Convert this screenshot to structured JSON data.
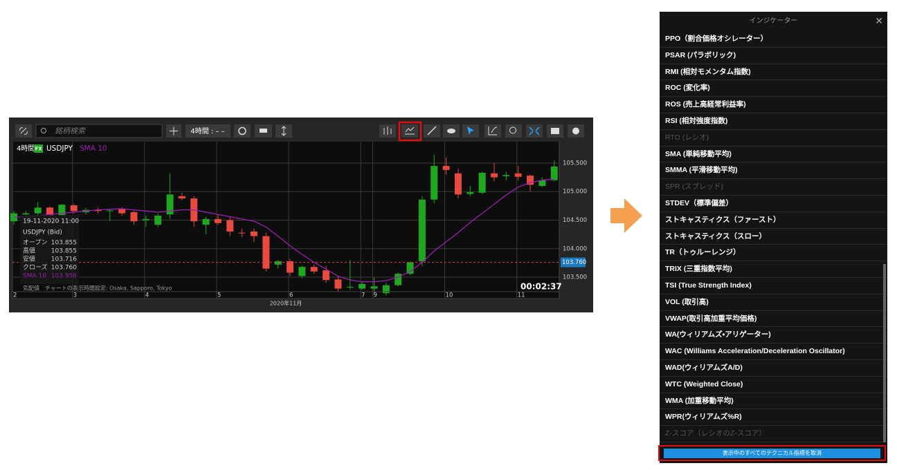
{
  "chart_panel": {
    "toolbar": {
      "search_placeholder": "銘柄検索",
      "timeframe": "4時間 : – –"
    },
    "header": {
      "timeframe": "4時間",
      "market": "FX",
      "symbol": "USDJPY"
    },
    "info": {
      "datetime": "19-11-2020 11:00",
      "symbol": "USDJPY (Bid)",
      "rows": [
        {
          "label": "オープン",
          "value": "103.855"
        },
        {
          "label": "高値",
          "value": "103.855"
        },
        {
          "label": "安値",
          "value": "103.716"
        },
        {
          "label": "クローズ",
          "value": "103.760"
        },
        {
          "label": "SMA 10",
          "value": "103.956"
        }
      ]
    },
    "footer": "気配値　チャートの表示時間設定: Osaka, Sapporo, Tokyo",
    "timer": "00:02:37",
    "month_label": "2020年11月"
  },
  "chart_data": {
    "type": "candlestick",
    "categories": [
      "2",
      null,
      null,
      null,
      null,
      "3",
      null,
      null,
      null,
      null,
      null,
      "4",
      null,
      null,
      null,
      null,
      null,
      "5",
      null,
      null,
      null,
      null,
      null,
      "6",
      null,
      null,
      null,
      null,
      null,
      "7",
      "9",
      null,
      null,
      null,
      null,
      null,
      "10",
      null,
      null,
      null,
      null,
      null,
      "11",
      null,
      null,
      null
    ],
    "open": [
      104.48,
      104.6,
      104.62,
      104.72,
      104.58,
      104.76,
      104.64,
      104.68,
      104.66,
      104.7,
      104.64,
      104.5,
      104.42,
      104.6,
      104.92,
      104.88,
      104.42,
      104.52,
      104.5,
      104.28,
      104.3,
      104.22,
      103.72,
      103.78,
      103.52,
      103.68,
      103.62,
      103.46,
      103.32,
      103.3,
      103.3,
      103.22,
      103.36,
      103.56,
      103.78,
      104.86,
      105.45,
      105.32,
      104.96,
      104.98,
      105.32,
      105.27,
      105.32,
      105.28,
      105.1,
      105.2
    ],
    "high": [
      104.66,
      104.66,
      104.82,
      104.74,
      104.78,
      104.78,
      104.72,
      104.72,
      104.7,
      104.72,
      104.66,
      104.58,
      104.62,
      105.32,
      104.98,
      104.92,
      104.56,
      104.6,
      104.55,
      104.35,
      104.35,
      104.28,
      103.8,
      103.82,
      103.7,
      103.72,
      103.7,
      103.52,
      103.8,
      103.42,
      103.5,
      103.4,
      103.58,
      103.78,
      104.92,
      105.65,
      105.6,
      105.4,
      105.1,
      105.35,
      105.5,
      105.35,
      105.45,
      105.3,
      105.25,
      105.55
    ],
    "low": [
      104.42,
      104.55,
      104.58,
      104.55,
      104.56,
      104.62,
      104.6,
      104.62,
      104.48,
      104.58,
      104.42,
      104.38,
      104.38,
      104.52,
      104.85,
      104.38,
      104.25,
      104.42,
      104.22,
      104.2,
      104.12,
      103.6,
      103.65,
      103.52,
      103.48,
      103.56,
      103.4,
      103.25,
      103.28,
      103.28,
      103.22,
      103.18,
      103.34,
      103.54,
      103.7,
      104.8,
      105.3,
      104.88,
      104.92,
      104.96,
      105.18,
      105.2,
      105.2,
      105.0,
      105.08,
      105.18
    ],
    "close": [
      104.62,
      104.62,
      104.72,
      104.58,
      104.77,
      104.66,
      104.68,
      104.66,
      104.67,
      104.62,
      104.48,
      104.52,
      104.58,
      104.95,
      104.88,
      104.48,
      104.52,
      104.45,
      104.3,
      104.27,
      104.22,
      103.65,
      103.78,
      103.58,
      103.68,
      103.6,
      103.45,
      103.3,
      103.33,
      103.38,
      103.34,
      103.36,
      103.56,
      103.76,
      104.86,
      105.45,
      105.38,
      104.95,
      104.99,
      105.33,
      105.25,
      105.29,
      105.26,
      105.12,
      105.2,
      105.44
    ],
    "up_color": "#1fa81f",
    "down_color": "#e84a3f",
    "sma": {
      "name": "SMA 10",
      "color": "#9b1fb0",
      "values": [
        104.55,
        104.56,
        104.58,
        104.6,
        104.62,
        104.64,
        104.66,
        104.68,
        104.69,
        104.7,
        104.68,
        104.66,
        104.64,
        104.66,
        104.68,
        104.68,
        104.64,
        104.6,
        104.56,
        104.52,
        104.48,
        104.38,
        104.22,
        104.05,
        103.9,
        103.76,
        103.64,
        103.52,
        103.45,
        103.42,
        103.42,
        103.44,
        103.5,
        103.6,
        103.76,
        103.96,
        104.12,
        104.28,
        104.46,
        104.62,
        104.78,
        104.94,
        105.08,
        105.16,
        105.2,
        105.22
      ]
    },
    "last_price": {
      "value": 103.76,
      "label": "103.760"
    },
    "ylim": [
      103.125,
      105.875
    ],
    "yticks": [
      {
        "value": 103.5,
        "label": "103.500"
      },
      {
        "value": 104,
        "label": "104.000"
      },
      {
        "value": 104.5,
        "label": "104.500"
      },
      {
        "value": 105,
        "label": "105.000"
      },
      {
        "value": 105.5,
        "label": "105.500"
      }
    ],
    "grid": true
  },
  "indicator_panel": {
    "title": "インジケーター",
    "items": [
      {
        "label": "PPO（割合価格オシレーター）"
      },
      {
        "label": "PSAR (パラボリック)"
      },
      {
        "label": "RMI (相対モメンタム指数)"
      },
      {
        "label": "ROC (変化率)"
      },
      {
        "label": "ROS (売上高経常利益率)"
      },
      {
        "label": "RSI (相対強度指数)"
      },
      {
        "label": "RTO (レシオ)",
        "disabled": true
      },
      {
        "label": "SMA (単純移動平均)"
      },
      {
        "label": "SMMA (平滑移動平均)"
      },
      {
        "label": "SPR (スプレッド)",
        "disabled": true
      },
      {
        "label": "STDEV（標準偏差）"
      },
      {
        "label": "ストキャスティクス（ファースト）"
      },
      {
        "label": "ストキャスティクス（スロー）"
      },
      {
        "label": "TR（トゥルーレンジ）"
      },
      {
        "label": "TRIX (三重指数平均)"
      },
      {
        "label": "TSI (True Strength Index)"
      },
      {
        "label": "VOL (取引高)"
      },
      {
        "label": "VWAP(取引高加重平均価格)"
      },
      {
        "label": "WA(ウィリアムズ・アリゲーター)"
      },
      {
        "label": "WAC (Williams Acceleration/Deceleration Oscillator)"
      },
      {
        "label": "WAD(ウィリアムズA/D)"
      },
      {
        "label": "WTC (Weighted Close)"
      },
      {
        "label": "WMA (加重移動平均)"
      },
      {
        "label": "WPR(ウィリアムズ%R)"
      },
      {
        "label": "Z-スコア（レシオのZ-スコア）",
        "disabled": true
      }
    ],
    "button": "表示中のすべてのテクニカル指標を取消"
  }
}
